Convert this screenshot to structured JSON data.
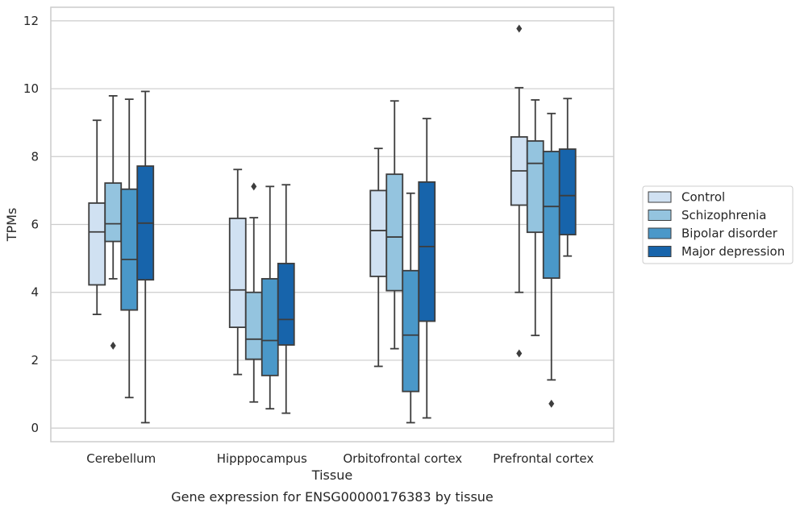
{
  "chart_data": {
    "type": "box",
    "title": "",
    "caption": "Gene expression for ENSG00000176383 by tissue",
    "xlabel": "Tissue",
    "ylabel": "TPMs",
    "ylim": [
      -0.4,
      12.4
    ],
    "yticks": [
      0,
      2,
      4,
      6,
      8,
      10,
      12
    ],
    "grid": "horizontal",
    "legend_position": "right",
    "categories": [
      "Cerebellum",
      "Hipppocampus",
      "Orbitofrontal cortex",
      "Prefrontal cortex"
    ],
    "series": [
      {
        "name": "Control",
        "color": "#d0e1f2",
        "boxes": [
          {
            "whisker_low": 3.35,
            "q1": 4.22,
            "median": 5.78,
            "q3": 6.63,
            "whisker_high": 9.07,
            "outliers": []
          },
          {
            "whisker_low": 1.58,
            "q1": 2.97,
            "median": 4.07,
            "q3": 6.18,
            "whisker_high": 7.62,
            "outliers": []
          },
          {
            "whisker_low": 1.82,
            "q1": 4.47,
            "median": 5.82,
            "q3": 7.0,
            "whisker_high": 8.24,
            "outliers": []
          },
          {
            "whisker_low": 4.0,
            "q1": 6.57,
            "median": 7.58,
            "q3": 8.58,
            "whisker_high": 10.03,
            "outliers": [
              11.77,
              2.2
            ]
          }
        ]
      },
      {
        "name": "Schizophrenia",
        "color": "#94c4df",
        "boxes": [
          {
            "whisker_low": 4.4,
            "q1": 5.5,
            "median": 6.02,
            "q3": 7.22,
            "whisker_high": 9.79,
            "outliers": [
              2.43
            ]
          },
          {
            "whisker_low": 0.77,
            "q1": 2.03,
            "median": 2.62,
            "q3": 4.0,
            "whisker_high": 6.2,
            "outliers": [
              7.12
            ]
          },
          {
            "whisker_low": 2.34,
            "q1": 4.05,
            "median": 5.63,
            "q3": 7.48,
            "whisker_high": 9.64,
            "outliers": []
          },
          {
            "whisker_low": 2.73,
            "q1": 5.77,
            "median": 7.8,
            "q3": 8.46,
            "whisker_high": 9.67,
            "outliers": []
          }
        ]
      },
      {
        "name": "Bipolar disorder",
        "color": "#4a98c9",
        "boxes": [
          {
            "whisker_low": 0.9,
            "q1": 3.48,
            "median": 4.97,
            "q3": 7.04,
            "whisker_high": 9.69,
            "outliers": []
          },
          {
            "whisker_low": 0.57,
            "q1": 1.55,
            "median": 2.58,
            "q3": 4.4,
            "whisker_high": 7.12,
            "outliers": []
          },
          {
            "whisker_low": 0.16,
            "q1": 1.08,
            "median": 2.74,
            "q3": 4.64,
            "whisker_high": 6.92,
            "outliers": []
          },
          {
            "whisker_low": 1.42,
            "q1": 4.42,
            "median": 6.53,
            "q3": 8.15,
            "whisker_high": 9.27,
            "outliers": [
              0.72
            ]
          }
        ]
      },
      {
        "name": "Major depression",
        "color": "#1764ab",
        "boxes": [
          {
            "whisker_low": 0.16,
            "q1": 4.37,
            "median": 6.04,
            "q3": 7.72,
            "whisker_high": 9.92,
            "outliers": []
          },
          {
            "whisker_low": 0.44,
            "q1": 2.45,
            "median": 3.2,
            "q3": 4.85,
            "whisker_high": 7.17,
            "outliers": []
          },
          {
            "whisker_low": 0.3,
            "q1": 3.15,
            "median": 5.35,
            "q3": 7.25,
            "whisker_high": 9.12,
            "outliers": []
          },
          {
            "whisker_low": 5.07,
            "q1": 5.7,
            "median": 6.85,
            "q3": 8.22,
            "whisker_high": 9.71,
            "outliers": []
          }
        ]
      }
    ]
  }
}
